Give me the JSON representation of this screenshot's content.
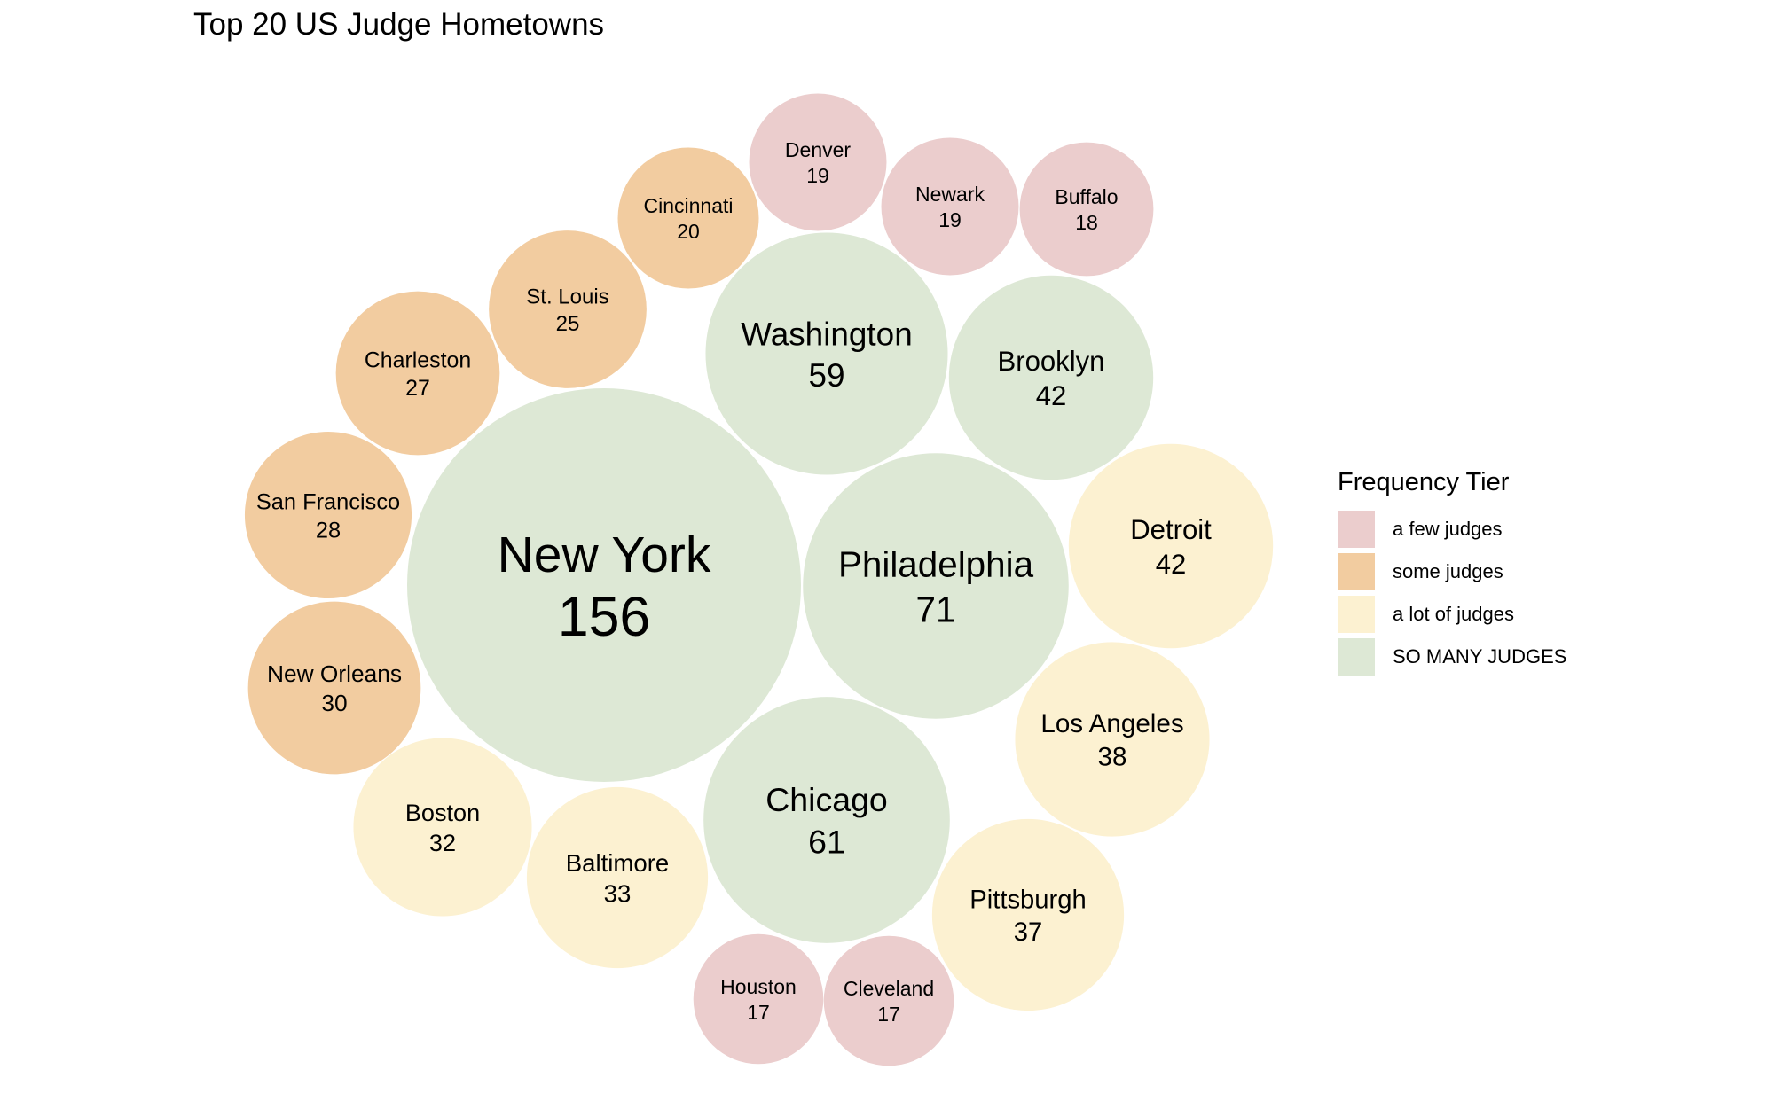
{
  "chart_data": {
    "type": "bubble",
    "title": "Top 20 US Judge Hometowns",
    "legend": {
      "title": "Frequency Tier",
      "placement": "right",
      "tiers": [
        {
          "label": "a few judges",
          "color": "#ebcdcd"
        },
        {
          "label": "some judges",
          "color": "#f2cca0"
        },
        {
          "label": "a lot of judges",
          "color": "#fcf1d1"
        },
        {
          "label": "SO MANY JUDGES",
          "color": "#dde8d5"
        }
      ]
    },
    "bubbles": [
      {
        "city": "New York",
        "value": 156,
        "tier": 3
      },
      {
        "city": "Philadelphia",
        "value": 71,
        "tier": 3
      },
      {
        "city": "Chicago",
        "value": 61,
        "tier": 3
      },
      {
        "city": "Washington",
        "value": 59,
        "tier": 3
      },
      {
        "city": "Brooklyn",
        "value": 42,
        "tier": 3
      },
      {
        "city": "Detroit",
        "value": 42,
        "tier": 2
      },
      {
        "city": "Los Angeles",
        "value": 38,
        "tier": 2
      },
      {
        "city": "Pittsburgh",
        "value": 37,
        "tier": 2
      },
      {
        "city": "Baltimore",
        "value": 33,
        "tier": 2
      },
      {
        "city": "Boston",
        "value": 32,
        "tier": 2
      },
      {
        "city": "New Orleans",
        "value": 30,
        "tier": 1
      },
      {
        "city": "San Francisco",
        "value": 28,
        "tier": 1
      },
      {
        "city": "Charleston",
        "value": 27,
        "tier": 1
      },
      {
        "city": "St. Louis",
        "value": 25,
        "tier": 1
      },
      {
        "city": "Cincinnati",
        "value": 20,
        "tier": 1
      },
      {
        "city": "Denver",
        "value": 19,
        "tier": 0
      },
      {
        "city": "Newark",
        "value": 19,
        "tier": 0
      },
      {
        "city": "Buffalo",
        "value": 18,
        "tier": 0
      },
      {
        "city": "Houston",
        "value": 17,
        "tier": 0
      },
      {
        "city": "Cleveland",
        "value": 17,
        "tier": 0
      }
    ]
  }
}
